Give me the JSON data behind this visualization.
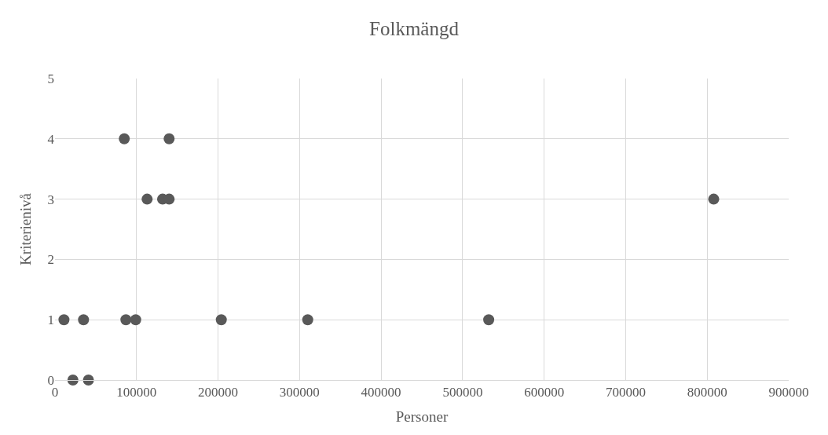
{
  "chart_data": {
    "type": "scatter",
    "title": "Folkmängd",
    "xlabel": "Personer",
    "ylabel": "Kriterienivå",
    "x": [
      11000,
      22000,
      35000,
      41000,
      85000,
      87000,
      99000,
      113000,
      132000,
      140000,
      140000,
      204000,
      310000,
      532000,
      808000
    ],
    "series": [
      {
        "color": "#595959",
        "values": [
          1,
          0,
          1,
          0,
          4,
          1,
          1,
          3,
          3,
          3,
          4,
          1,
          1,
          1,
          3
        ]
      }
    ],
    "xlim": [
      0,
      900000
    ],
    "xticks": [
      0,
      100000,
      200000,
      300000,
      400000,
      500000,
      600000,
      700000,
      800000,
      900000
    ],
    "ylim": [
      0,
      5
    ],
    "yticks": [
      0,
      1,
      2,
      3,
      4,
      5
    ],
    "grid": true,
    "marker": "circle"
  }
}
